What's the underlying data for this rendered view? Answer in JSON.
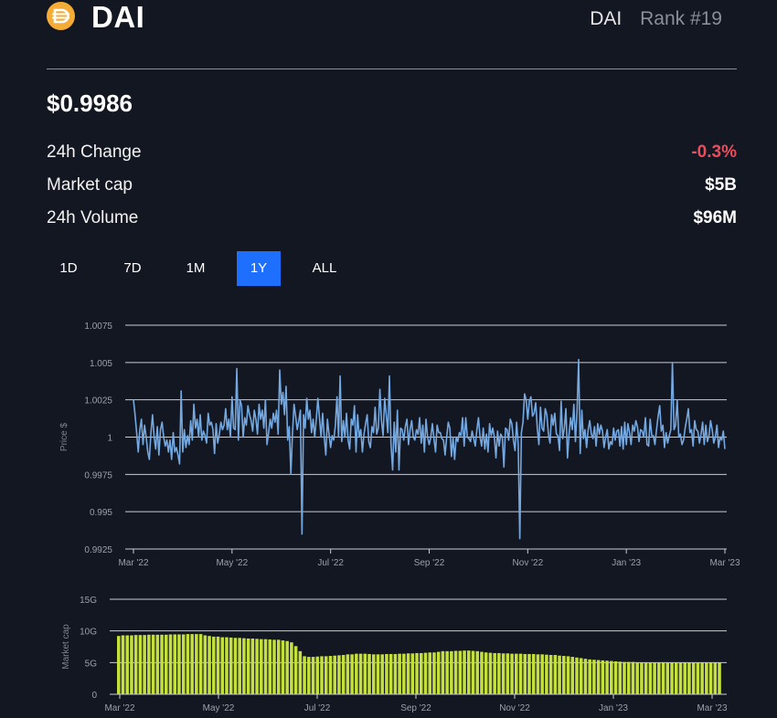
{
  "coin": {
    "icon": "dai-coin-icon",
    "name": "DAI",
    "symbol": "DAI",
    "rank": "Rank #19",
    "price": "$0.9986"
  },
  "stats": [
    {
      "label": "24h Change",
      "value": "-0.3%",
      "negative": true
    },
    {
      "label": "Market cap",
      "value": "$5B",
      "negative": false
    },
    {
      "label": "24h Volume",
      "value": "$96M",
      "negative": false
    }
  ],
  "timeframes": [
    {
      "label": "1D",
      "active": false
    },
    {
      "label": "7D",
      "active": false
    },
    {
      "label": "1M",
      "active": false
    },
    {
      "label": "1Y",
      "active": true
    },
    {
      "label": "ALL",
      "active": false
    }
  ],
  "colors": {
    "background": "#131722",
    "negative": "#eb4d5c",
    "accent": "#1f6fff",
    "price_line": "#74a8e0",
    "market_cap_bars": "#c5e03d"
  },
  "chart_data": [
    {
      "type": "line",
      "ylabel": "Price $",
      "ylim": [
        0.9925,
        1.0075
      ],
      "yticks": [
        "1.0075",
        "1.005",
        "1.0025",
        "1",
        "0.9975",
        "0.995",
        "0.9925"
      ],
      "xticks": [
        "Mar '22",
        "May '22",
        "Jul '22",
        "Sep '22",
        "Nov '22",
        "Jan '23",
        "Mar '23"
      ],
      "x_range": [
        "2022-03-01",
        "2023-03-01"
      ],
      "grid": true,
      "series": [
        {
          "values": [
            1.0025,
            1.0015,
            1.0003,
            0.999,
            1.0005,
            1.0012,
            0.9995,
            1.0008,
            1.0,
            0.999,
            0.9985,
            1.0003,
            1.0015,
            1.0,
            0.9992,
            1.0007,
            0.9988,
            1.0005,
            1.001,
            1.0,
            0.9994,
            0.9998,
            0.999,
            0.9998,
            0.9985,
            1.0003,
            0.999,
            0.9993,
            0.9988,
            0.9982,
            1.0031,
            0.999,
            1.0005,
            0.9993,
            1.0001,
            0.9995,
            1.0011,
            0.9998,
            1.0022,
            1.0006,
            1.0012,
            1.0,
            1.0015,
            0.9998,
            1.0004,
            1.0001,
            0.9996,
            1.0016,
            1.0008,
            1.001,
            1.0005,
            0.9989,
            1.0009,
            0.9996,
            1.0002,
            1.001,
            1.0005,
            1.0008,
            1.0019,
            1.0005,
            1.0012,
            1.0,
            1.0027,
            1.0006,
            1.0005,
            1.0046,
            0.9998,
            1.0025,
            1.0021,
            1.0,
            1.0013,
            1.0008,
            1.0021,
            1.0015,
            1.0011,
            1.0004,
            1.0018,
            1.0012,
            1.0002,
            1.0022,
            1.0012,
            1.0018,
            1.0006,
            1.0025,
            0.9995,
            1.0003,
            1.0012,
            1.0006,
            1.0016,
            1.001,
            1.0018,
            1.0002,
            1.0045,
            1.0022,
            1.003,
            1.0015,
            1.0034,
            0.9998,
            1.0007,
            0.9975,
            1.0002,
            1.0022,
            1.0014,
            1.0005,
            1.0011,
            1.0018,
            0.9935,
            1.0015,
            1.0006,
            1.0026,
            1.0012,
            1.0018,
            1.0003,
            1.0012,
            1.0,
            1.0012,
            1.0026,
            1.0013,
            1.0,
            1.0016,
            1.0,
            0.9988,
            1.0012,
            1.0002,
            0.9993,
            1.0001,
            0.9998,
            1.0008,
            1.0027,
            1.0,
            1.0041,
            0.9997,
            1.0011,
            1.0,
            1.0016,
            0.9998,
            0.9992,
            1.0012,
            1.0008,
            1.0021,
            0.999,
            1.0015,
            1.0,
            1.0005,
            0.999,
            1.0002,
            1.0009,
            1.0015,
            0.9997,
            0.9993,
            1.0007,
            1.0003,
            1.002,
            1.0002,
            1.0006,
            1.0032,
            1.0011,
            1.0001,
            1.0026,
            1.0015,
            1.0003,
            1.0041,
            0.9995,
            0.9978,
            1.001,
            0.999,
            1.0018,
            0.9978,
            1.0006,
            1.0005,
            0.9998,
            1.0007,
            1.0012,
            0.9995,
            1.0005,
            1.0011,
            1.0,
            0.9998,
            1.0005,
            1.0002,
            1.0013,
            0.9996,
            1.0008,
            0.999,
            1.0012,
            1.0,
            0.9995,
            1.0,
            1.0009,
            0.9999,
            0.999,
            1.0008,
            1.0003,
            1.0003,
            0.9999,
            0.9998,
            0.9988,
            1.0,
            1.001,
            1.0006,
            0.9987,
            1.0,
            0.9985,
            1.0,
            0.9997,
            1.0003,
            1.0001,
            1.0013,
            0.9994,
            1.0013,
            1.0,
            0.9999,
            0.9997,
            1.0004,
            0.9999,
            0.9994,
            1.0005,
            1.0013,
            1.0,
            0.9994,
            1.0006,
            0.9992,
            1.0002,
            0.999,
            1.0009,
            1.0001,
            1.0006,
            1.0,
            0.9986,
            1.0004,
            0.9994,
            1.0002,
            1.0,
            0.998,
            1.0006,
            1.0005,
            0.9998,
            1.0012,
            1.0009,
            0.9998,
            0.9991,
            1.001,
            0.9995,
            0.9932,
            1.0003,
            1.001,
            1.0029,
            1.0025,
            1.0012,
            1.0024,
            1.0027,
            1.0014,
            1.0016,
            1.0023,
            1.0006,
            0.9995,
            1.002,
            1.0006,
            1.0004,
            1.0019,
            1.0015,
            1.0002,
            0.9996,
            1.0015,
            1.0008,
            1.0016,
            1.0002,
            1.0001,
            0.9991,
            1.0024,
            0.9999,
            1.0006,
            1.0019,
            0.9986,
            1.0002,
            1.0013,
            1.0005,
            1.0022,
            0.9997,
            1.0017,
            1.0052,
            0.9989,
            1.0018,
            0.9999,
            1.0005,
            0.9993,
            1.0005,
            1.0011,
            1.0002,
            0.9999,
            1.0007,
            0.9994,
            1.0009,
            1.0002,
            1.0008,
            1.0004,
            0.9993,
            1.0,
            1.0005,
            0.9992,
            0.9997,
            0.9995,
            1.0006,
            0.9998,
            1.0004,
            1.0005,
            0.9994,
            1.0007,
            0.9992,
            1.001,
            0.9995,
            1.0009,
            1.0003,
            0.9995,
            1.0008,
            1.0004,
            1.0011,
            1.0007,
            0.9997,
            1.0005,
            1.0004,
            1.0,
            1.0013,
            0.9995,
            0.9994,
            1.0012,
            1.0001,
            1.0001,
            0.9995,
            1.0005,
            1.0014,
            1.0021,
            1.0004,
            1.0008,
            0.9993,
            1.0003,
            0.9996,
            1.0001,
            1.0005,
            1.005,
            1.0005,
            1.0008,
            1.0025,
            1.0,
            1.0002,
            0.9995,
            0.9998,
            1.0006,
            1.0012,
            1.0019,
            1.0003,
            1.0005,
            0.9994,
            1.0011,
            1.0005,
            1.0004,
            0.9996,
            1.0002,
            1.001,
            0.9995,
            1.0008,
            0.9997,
            1.0001,
            1.0011,
            1.0005,
            0.9996,
            1.0,
            1.0008,
            0.9993,
            1.0,
            0.9998,
            1.0004,
            0.9992
          ]
        }
      ]
    },
    {
      "type": "bar",
      "ylabel": "Market cap",
      "ylim": [
        0,
        15
      ],
      "yticks": [
        "15G",
        "10G",
        "5G",
        "0"
      ],
      "xticks": [
        "Mar '22",
        "May '22",
        "Jul '22",
        "Sep '22",
        "Nov '22",
        "Jan '23",
        "Mar '23"
      ],
      "x_range": [
        "2022-03-01",
        "2023-03-01"
      ],
      "grid": true,
      "series": [
        {
          "values": [
            9.2,
            9.3,
            9.3,
            9.3,
            9.35,
            9.35,
            9.35,
            9.4,
            9.4,
            9.4,
            9.4,
            9.4,
            9.45,
            9.45,
            9.45,
            9.45,
            9.5,
            9.5,
            9.5,
            9.5,
            9.3,
            9.2,
            9.1,
            9.1,
            9.0,
            9.0,
            8.95,
            8.9,
            8.9,
            8.85,
            8.8,
            8.8,
            8.75,
            8.7,
            8.7,
            8.65,
            8.6,
            8.6,
            8.5,
            8.4,
            8.2,
            7.6,
            6.8,
            6.0,
            5.9,
            5.9,
            5.95,
            6.0,
            6.0,
            6.05,
            6.1,
            6.15,
            6.2,
            6.3,
            6.3,
            6.4,
            6.4,
            6.4,
            6.35,
            6.3,
            6.3,
            6.3,
            6.35,
            6.35,
            6.35,
            6.4,
            6.4,
            6.45,
            6.45,
            6.5,
            6.5,
            6.55,
            6.6,
            6.6,
            6.7,
            6.8,
            6.8,
            6.8,
            6.85,
            6.85,
            6.9,
            6.9,
            6.85,
            6.8,
            6.7,
            6.6,
            6.55,
            6.5,
            6.5,
            6.45,
            6.45,
            6.4,
            6.4,
            6.4,
            6.35,
            6.35,
            6.35,
            6.3,
            6.3,
            6.25,
            6.2,
            6.2,
            6.1,
            6.05,
            6.0,
            5.9,
            5.8,
            5.7,
            5.6,
            5.5,
            5.45,
            5.4,
            5.35,
            5.3,
            5.25,
            5.2,
            5.15,
            5.1,
            5.1,
            5.1,
            5.05,
            5.05,
            5.05,
            5.05,
            5.05,
            5.05,
            5.05,
            5.05,
            5.0,
            5.0,
            5.0,
            5.0,
            5.0,
            5.0,
            5.0,
            5.0,
            5.0,
            5.0,
            5.0,
            5.0
          ]
        }
      ]
    }
  ]
}
